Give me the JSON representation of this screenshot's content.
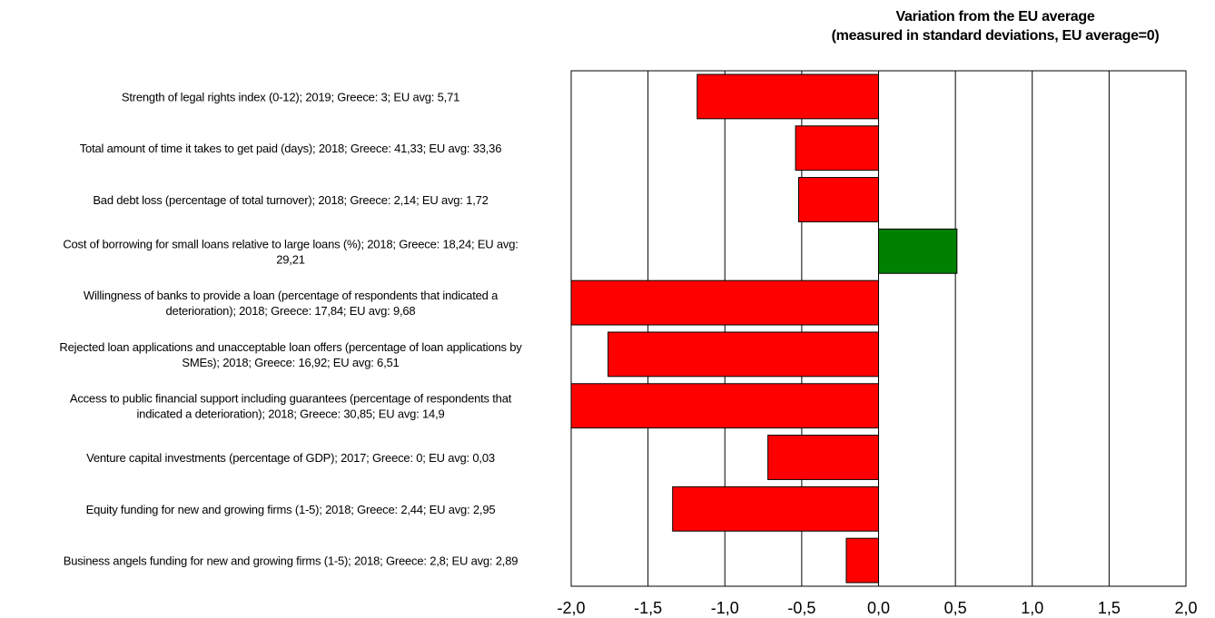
{
  "chart_data": {
    "type": "bar",
    "orientation": "horizontal",
    "title": "Variation from the EU average",
    "subtitle": "(measured in standard deviations, EU average=0)",
    "xlim": [
      -2.0,
      2.0
    ],
    "xticks": [
      "-2,0",
      "-1,5",
      "-1,0",
      "-0,5",
      "0,0",
      "0,5",
      "1,0",
      "1,5",
      "2,0"
    ],
    "grid": "vertical",
    "positive_color": "#008000",
    "negative_color": "#ff0000",
    "categories": [
      [
        "Strength of legal rights index (0-12); 2019; Greece: 3; EU avg: 5,71"
      ],
      [
        "Total amount of time it takes to get paid (days); 2018; Greece: 41,33; EU avg: 33,36"
      ],
      [
        "Bad debt loss (percentage of total turnover); 2018; Greece: 2,14; EU avg: 1,72"
      ],
      [
        "Cost of borrowing for small loans relative to large loans (%); 2018; Greece: 18,24; EU avg:",
        "29,21"
      ],
      [
        "Willingness of banks to provide a loan (percentage of respondents that indicated a",
        "deterioration); 2018; Greece: 17,84; EU avg: 9,68"
      ],
      [
        "Rejected loan applications and unacceptable loan offers (percentage of loan applications by",
        "SMEs); 2018; Greece: 16,92; EU avg: 6,51"
      ],
      [
        "Access to public financial support including guarantees (percentage of respondents that",
        "indicated a deterioration); 2018; Greece: 30,85; EU avg: 14,9"
      ],
      [
        "Venture capital investments (percentage of GDP); 2017; Greece: 0; EU avg: 0,03"
      ],
      [
        "Equity funding for new and growing firms (1-5); 2018; Greece: 2,44; EU avg: 2,95"
      ],
      [
        "Business angels funding for new and growing firms (1-5); 2018; Greece: 2,8; EU avg: 2,89"
      ]
    ],
    "values": [
      -1.18,
      -0.54,
      -0.52,
      0.51,
      -2.0,
      -1.76,
      -2.0,
      -0.72,
      -1.34,
      -0.21
    ]
  }
}
